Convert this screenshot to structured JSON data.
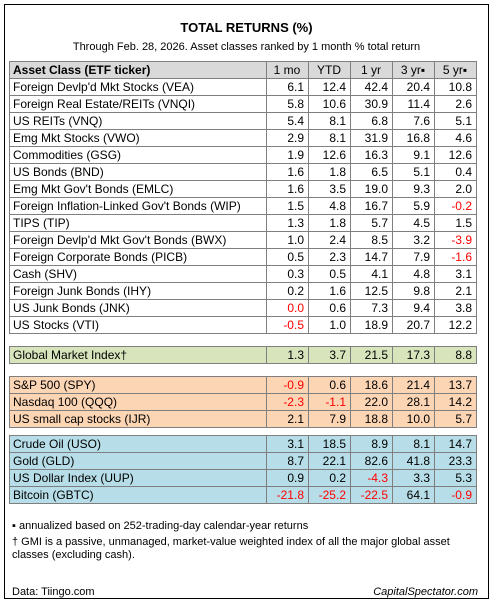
{
  "title": "TOTAL RETURNS (%)",
  "subtitle": "Through Feb. 28, 2026. Asset classes ranked by 1 month % total return",
  "columns": [
    "Asset Class (ETF ticker)",
    "1 mo",
    "YTD",
    "1 yr",
    "3 yr▪",
    "5 yr▪"
  ],
  "rows": [
    {
      "name": "Foreign Devlp'd Mkt Stocks (VEA)",
      "m1": "6.1",
      "ytd": "12.4",
      "y1": "42.4",
      "y3": "20.4",
      "y5": "10.8"
    },
    {
      "name": "Foreign Real Estate/REITs (VNQI)",
      "m1": "5.8",
      "ytd": "10.6",
      "y1": "30.9",
      "y3": "11.4",
      "y5": "2.6"
    },
    {
      "name": "US REITs (VNQ)",
      "m1": "5.4",
      "ytd": "8.1",
      "y1": "6.8",
      "y3": "7.6",
      "y5": "5.1"
    },
    {
      "name": "Emg Mkt Stocks (VWO)",
      "m1": "2.9",
      "ytd": "8.1",
      "y1": "31.9",
      "y3": "16.8",
      "y5": "4.6"
    },
    {
      "name": "Commodities (GSG)",
      "m1": "1.9",
      "ytd": "12.6",
      "y1": "16.3",
      "y3": "9.1",
      "y5": "12.6"
    },
    {
      "name": "US Bonds (BND)",
      "m1": "1.6",
      "ytd": "1.8",
      "y1": "6.5",
      "y3": "5.1",
      "y5": "0.4"
    },
    {
      "name": "Emg Mkt Gov't Bonds (EMLC)",
      "m1": "1.6",
      "ytd": "3.5",
      "y1": "19.0",
      "y3": "9.3",
      "y5": "2.0"
    },
    {
      "name": "Foreign Inflation-Linked Gov't Bonds (WIP)",
      "m1": "1.5",
      "ytd": "4.8",
      "y1": "16.7",
      "y3": "5.9",
      "y5": "-0.2"
    },
    {
      "name": "TIPS (TIP)",
      "m1": "1.3",
      "ytd": "1.8",
      "y1": "5.7",
      "y3": "4.5",
      "y5": "1.5"
    },
    {
      "name": "Foreign Devlp'd Mkt Gov't Bonds (BWX)",
      "m1": "1.0",
      "ytd": "2.4",
      "y1": "8.5",
      "y3": "3.2",
      "y5": "-3.9"
    },
    {
      "name": "Foreign Corporate Bonds (PICB)",
      "m1": "0.5",
      "ytd": "2.3",
      "y1": "14.7",
      "y3": "7.9",
      "y5": "-1.6"
    },
    {
      "name": "Cash (SHV)",
      "m1": "0.3",
      "ytd": "0.5",
      "y1": "4.1",
      "y3": "4.8",
      "y5": "3.1"
    },
    {
      "name": "Foreign Junk Bonds (IHY)",
      "m1": "0.2",
      "ytd": "1.6",
      "y1": "12.5",
      "y3": "9.8",
      "y5": "2.1"
    },
    {
      "name": "US Junk Bonds (JNK)",
      "m1": "0.0",
      "ytd": "0.6",
      "y1": "7.3",
      "y3": "9.4",
      "y5": "3.8"
    },
    {
      "name": "US Stocks (VTI)",
      "m1": "-0.5",
      "ytd": "1.0",
      "y1": "18.9",
      "y3": "20.7",
      "y5": "12.2"
    }
  ],
  "gmi_row": {
    "name": "Global Market Index†",
    "m1": "1.3",
    "ytd": "3.7",
    "y1": "21.5",
    "y3": "17.3",
    "y5": "8.8"
  },
  "equity_rows": [
    {
      "name": "S&P 500 (SPY)",
      "m1": "-0.9",
      "ytd": "0.6",
      "y1": "18.6",
      "y3": "21.4",
      "y5": "13.7"
    },
    {
      "name": "Nasdaq 100 (QQQ)",
      "m1": "-2.3",
      "ytd": "-1.1",
      "y1": "22.0",
      "y3": "28.1",
      "y5": "14.2"
    },
    {
      "name": "US small cap stocks (IJR)",
      "m1": "2.1",
      "ytd": "7.9",
      "y1": "18.8",
      "y3": "10.0",
      "y5": "5.7"
    }
  ],
  "other_rows": [
    {
      "name": "Crude Oil (USO)",
      "m1": "3.1",
      "ytd": "18.5",
      "y1": "8.9",
      "y3": "8.1",
      "y5": "14.7"
    },
    {
      "name": "Gold (GLD)",
      "m1": "8.7",
      "ytd": "22.1",
      "y1": "82.6",
      "y3": "41.8",
      "y5": "23.3"
    },
    {
      "name": "US Dollar Index (UUP)",
      "m1": "0.9",
      "ytd": "0.2",
      "y1": "-4.3",
      "y3": "3.3",
      "y5": "5.3"
    },
    {
      "name": "Bitcoin (GBTC)",
      "m1": "-21.8",
      "ytd": "-25.2",
      "y1": "-22.5",
      "y3": "64.1",
      "y5": "-0.9"
    }
  ],
  "footnotes": {
    "annualized": "▪ annualized based on 252-trading-day calendar-year returns",
    "gmi": "† GMI is a passive, unmanaged, market-value weighted index of all the major global asset classes (excluding cash)."
  },
  "footer": {
    "source": "Data: Tiingo.com",
    "brand": "CapitalSpectator.com"
  },
  "colors": {
    "header_bg": "#d9d9d9",
    "gmi_bg": "#d8e4bc",
    "equity_bg": "#fcd5b4",
    "other_bg": "#b7dee8",
    "negative": "#ff0000"
  }
}
